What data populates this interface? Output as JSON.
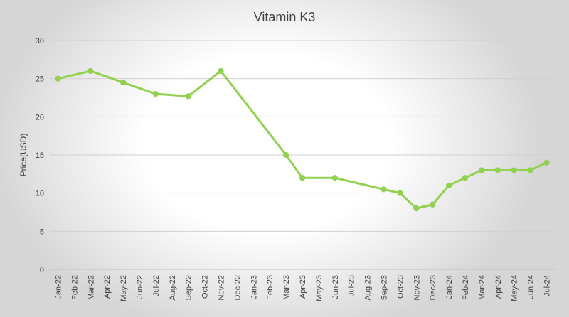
{
  "chart_data": {
    "type": "line",
    "title": "Vitamin K3",
    "xlabel": "",
    "ylabel": "Price(USD)",
    "ylim": [
      0,
      30
    ],
    "yticks": [
      0,
      5,
      10,
      15,
      20,
      25,
      30
    ],
    "grid": true,
    "legend": "none",
    "categories": [
      "Jan-22",
      "Feb-22",
      "Mar-22",
      "Apr-22",
      "May-22",
      "Jun-22",
      "Jul-22",
      "Aug-22",
      "Sep-22",
      "Oct-22",
      "Nov-22",
      "Dec-22",
      "Jan-23",
      "Feb-23",
      "Mar-23",
      "Apr-23",
      "May-23",
      "Jun-23",
      "Jul-23",
      "Aug-23",
      "Sep-23",
      "Oct-23",
      "Nov-23",
      "Dec-23",
      "Jan-24",
      "Feb-24",
      "Mar-24",
      "Apr-24",
      "May-24",
      "Jun-24",
      "Jul-24"
    ],
    "series": [
      {
        "name": "Vitamin K3",
        "color": "#92d050",
        "points": [
          {
            "x": "Jan-22",
            "y": 25
          },
          {
            "x": "Mar-22",
            "y": 26
          },
          {
            "x": "May-22",
            "y": 24.5
          },
          {
            "x": "Jul-22",
            "y": 23
          },
          {
            "x": "Sep-22",
            "y": 22.7
          },
          {
            "x": "Nov-22",
            "y": 26
          },
          {
            "x": "Mar-23",
            "y": 15
          },
          {
            "x": "Apr-23",
            "y": 12
          },
          {
            "x": "Jun-23",
            "y": 12
          },
          {
            "x": "Sep-23",
            "y": 10.5
          },
          {
            "x": "Oct-23",
            "y": 10
          },
          {
            "x": "Nov-23",
            "y": 8
          },
          {
            "x": "Dec-23",
            "y": 8.5
          },
          {
            "x": "Jan-24",
            "y": 11
          },
          {
            "x": "Feb-24",
            "y": 12
          },
          {
            "x": "Mar-24",
            "y": 13
          },
          {
            "x": "Apr-24",
            "y": 13
          },
          {
            "x": "May-24",
            "y": 13
          },
          {
            "x": "Jun-24",
            "y": 13
          },
          {
            "x": "Jul-24",
            "y": 14
          }
        ]
      }
    ]
  }
}
